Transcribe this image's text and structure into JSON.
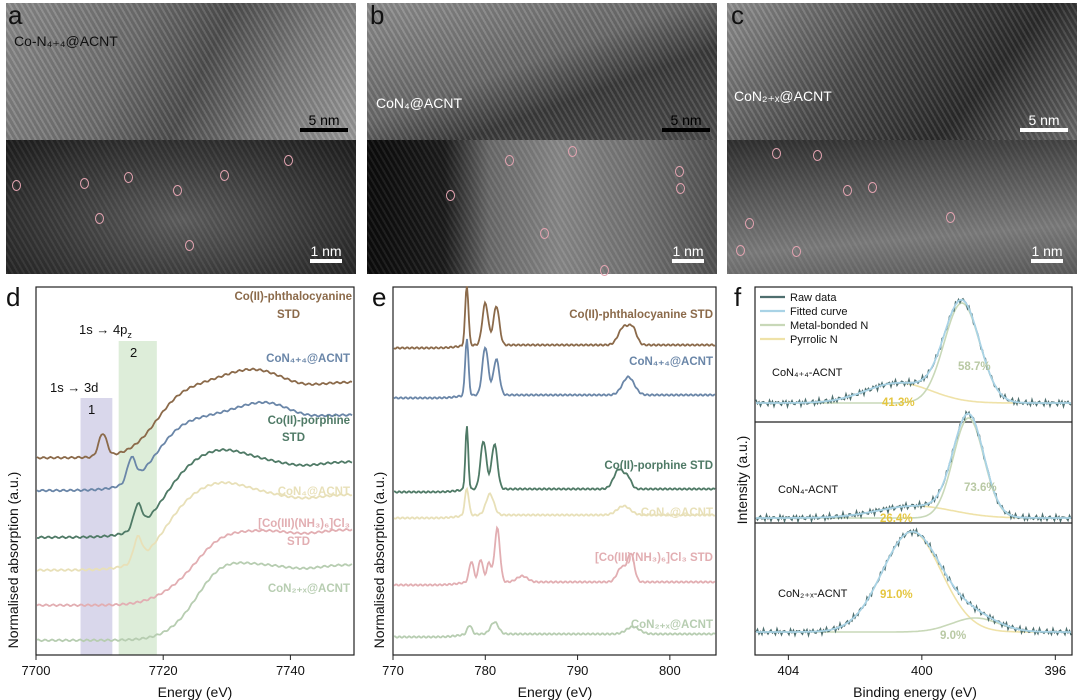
{
  "panels": {
    "a": {
      "letter": "a",
      "label": "Co-N₄₊₄@ACNT",
      "scale_top": "5 nm",
      "scale_bottom": "1 nm"
    },
    "b": {
      "letter": "b",
      "label": "CoN₄@ACNT",
      "scale_top": "5 nm",
      "scale_bottom": "1 nm"
    },
    "c": {
      "letter": "c",
      "label": "CoN₂₊ₓ@ACNT",
      "scale_top": "5 nm",
      "scale_bottom": "1 nm"
    },
    "d": {
      "letter": "d"
    },
    "e": {
      "letter": "e"
    },
    "f": {
      "letter": "f"
    }
  },
  "chart_data": [
    {
      "id": "d",
      "type": "line",
      "xlabel": "Energy (eV)",
      "ylabel": "Normalised absorption (a.u.)",
      "xlim": [
        7700,
        7750
      ],
      "xticks": [
        7700,
        7720,
        7740
      ],
      "annotations": [
        {
          "text": "1s → 3d",
          "box": "1",
          "x_range": [
            7707,
            7712
          ],
          "color": "#c9c6e2"
        },
        {
          "text": "1s → 4pz",
          "box": "2",
          "x_range": [
            7713,
            7719
          ],
          "color": "#cfe6c9"
        }
      ],
      "series": [
        {
          "name": "Co(II)-phthalocyanine STD",
          "color": "#8b6a4a",
          "edge": 7715,
          "pre": 7710.5,
          "white": 7734,
          "offset": 4.0
        },
        {
          "name": "CoN₄₊₄@ACNT",
          "color": "#6a86a8",
          "edge": 7715,
          "pre": 7715,
          "white": 7736,
          "offset": 3.3
        },
        {
          "name": "Co(II)-porphine STD",
          "color": "#4f7a66",
          "edge": 7716,
          "pre": 7716,
          "white": 7729,
          "offset": 2.3
        },
        {
          "name": "CoN₄@ACNT",
          "color": "#e8e0b8",
          "edge": 7716,
          "pre": 7716,
          "white": 7729,
          "offset": 1.6
        },
        {
          "name": "[Co(III)(NH₃)₆]Cl₃ STD",
          "color": "#e2aeb2",
          "edge": 7722,
          "pre": 0,
          "white": 7724,
          "offset": 0.85
        },
        {
          "name": "CoN₂₊ₓ@ACNT",
          "color": "#b7cdb1",
          "edge": 7722,
          "pre": 0,
          "white": 7727,
          "offset": 0.1
        }
      ]
    },
    {
      "id": "e",
      "type": "line",
      "xlabel": "Energy (eV)",
      "ylabel": "Normalised absorption (a.u.)",
      "xlim": [
        770,
        805
      ],
      "xticks": [
        770,
        780,
        790,
        800
      ],
      "series": [
        {
          "name": "Co(II)-phthalocyanine STD",
          "color": "#8b6a4a",
          "offset": 4.6
        },
        {
          "name": "CoN₄₊₄@ACNT",
          "color": "#6a86a8",
          "offset": 3.7
        },
        {
          "name": "Co(II)-porphine STD",
          "color": "#4f7a66",
          "offset": 2.3
        },
        {
          "name": "CoN₄@ACNT",
          "color": "#e8e0b8",
          "offset": 1.8
        },
        {
          "name": "[Co(III)(NH₃)₆]Cl₃ STD",
          "color": "#e2aeb2",
          "offset": 0.9
        },
        {
          "name": "CoN₂₊ₓ@ACNT",
          "color": "#b7cdb1",
          "offset": 0.1
        }
      ]
    },
    {
      "id": "f",
      "type": "line",
      "xlabel": "Binding energy (eV)",
      "ylabel": "Intensity (a.u.)",
      "xlim": [
        405,
        395.5
      ],
      "xticks": [
        404,
        400,
        396
      ],
      "legend": [
        "Raw data",
        "Fitted curve",
        "Metal-bonded N",
        "Pyrrolic N"
      ],
      "legend_colors": [
        "#4e6e6e",
        "#a9d3e6",
        "#c8d8b8",
        "#efe2a8"
      ],
      "samples": [
        {
          "name": "CoN₄₊₄-ACNT",
          "metal_pct": "58.7%",
          "pyrrolic_pct": "41.3%"
        },
        {
          "name": "CoN₄-ACNT",
          "metal_pct": "73.6%",
          "pyrrolic_pct": "26.4%"
        },
        {
          "name": "CoN₂₊ₓ-ACNT",
          "metal_pct": "9.0%",
          "pyrrolic_pct": "91.0%"
        }
      ]
    }
  ]
}
